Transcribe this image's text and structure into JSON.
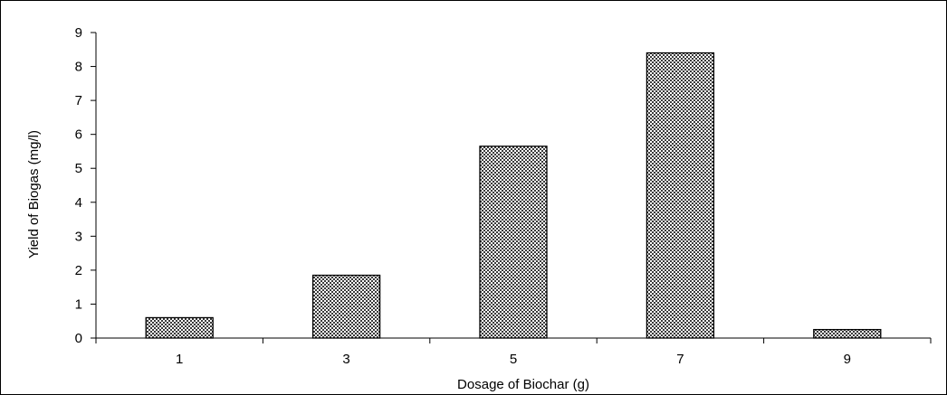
{
  "chart_data": {
    "type": "bar",
    "title": "",
    "xlabel": "Dosage of Biochar (g)",
    "ylabel": "Yield of Biogas (mg/l)",
    "categories": [
      "1",
      "3",
      "5",
      "7",
      "9"
    ],
    "values": [
      0.6,
      1.85,
      5.65,
      8.4,
      0.25
    ],
    "ylim": [
      0,
      9
    ],
    "yticks": [
      "0",
      "1",
      "2",
      "3",
      "4",
      "5",
      "6",
      "7",
      "8",
      "9"
    ],
    "grid": false,
    "legend": "none",
    "bar_fill": "crosshatch-dots",
    "bar_stroke": "#000000"
  }
}
